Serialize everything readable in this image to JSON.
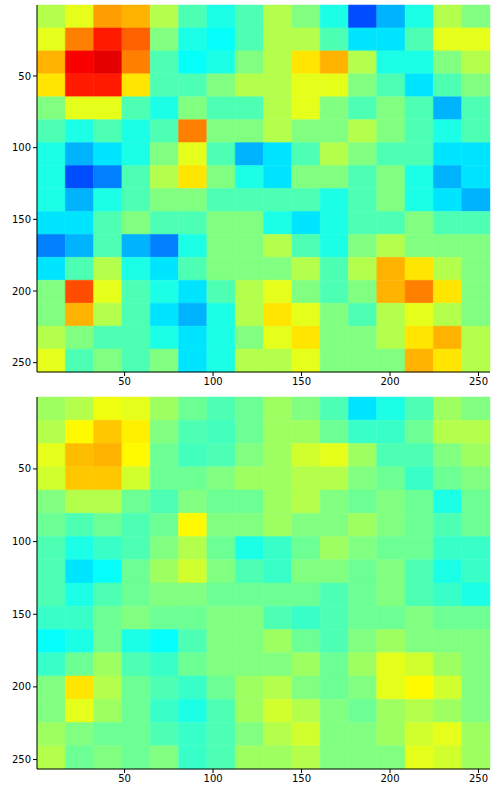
{
  "chart_data": [
    {
      "type": "heatmap",
      "xlim": [
        0.5,
        256.5
      ],
      "ylim": [
        0.5,
        256.5
      ],
      "xticks": [
        50,
        100,
        150,
        200,
        250
      ],
      "yticks": [
        50,
        100,
        150,
        200,
        250
      ],
      "x_edges": [
        0.5,
        16.5,
        32.5,
        48.5,
        64.5,
        80.5,
        96.5,
        112.5,
        128.5,
        144.5,
        160.5,
        176.5,
        192.5,
        208.5,
        224.5,
        240.5,
        256.5
      ],
      "y_edges": [
        0.5,
        16.5,
        32.5,
        48.5,
        64.5,
        80.5,
        96.5,
        112.5,
        128.5,
        144.5,
        160.5,
        176.5,
        192.5,
        208.5,
        224.5,
        240.5,
        256.5
      ],
      "clim": [
        0,
        1
      ],
      "cells": [
        [
          0.55,
          0.6,
          0.72,
          0.7,
          0.55,
          0.45,
          0.4,
          0.45,
          0.55,
          0.5,
          0.4,
          0.2,
          0.3,
          0.4,
          0.55,
          0.5
        ],
        [
          0.6,
          0.75,
          0.85,
          0.78,
          0.5,
          0.4,
          0.38,
          0.45,
          0.55,
          0.55,
          0.45,
          0.35,
          0.35,
          0.45,
          0.6,
          0.6
        ],
        [
          0.7,
          0.88,
          0.9,
          0.75,
          0.45,
          0.38,
          0.4,
          0.5,
          0.55,
          0.65,
          0.7,
          0.55,
          0.4,
          0.4,
          0.5,
          0.55
        ],
        [
          0.65,
          0.85,
          0.85,
          0.65,
          0.45,
          0.45,
          0.5,
          0.55,
          0.55,
          0.6,
          0.6,
          0.5,
          0.45,
          0.35,
          0.45,
          0.5
        ],
        [
          0.5,
          0.6,
          0.6,
          0.45,
          0.4,
          0.5,
          0.45,
          0.45,
          0.55,
          0.6,
          0.5,
          0.45,
          0.5,
          0.45,
          0.3,
          0.45
        ],
        [
          0.45,
          0.4,
          0.45,
          0.4,
          0.45,
          0.75,
          0.5,
          0.5,
          0.55,
          0.5,
          0.5,
          0.55,
          0.5,
          0.45,
          0.4,
          0.45
        ],
        [
          0.4,
          0.3,
          0.35,
          0.4,
          0.5,
          0.6,
          0.45,
          0.3,
          0.35,
          0.45,
          0.55,
          0.5,
          0.45,
          0.45,
          0.35,
          0.35
        ],
        [
          0.4,
          0.2,
          0.25,
          0.45,
          0.55,
          0.65,
          0.5,
          0.4,
          0.35,
          0.5,
          0.5,
          0.45,
          0.5,
          0.4,
          0.3,
          0.35
        ],
        [
          0.4,
          0.3,
          0.4,
          0.45,
          0.5,
          0.5,
          0.45,
          0.45,
          0.45,
          0.45,
          0.4,
          0.45,
          0.5,
          0.4,
          0.35,
          0.3
        ],
        [
          0.35,
          0.35,
          0.45,
          0.5,
          0.45,
          0.45,
          0.5,
          0.5,
          0.4,
          0.35,
          0.4,
          0.45,
          0.45,
          0.5,
          0.45,
          0.45
        ],
        [
          0.25,
          0.3,
          0.45,
          0.3,
          0.25,
          0.4,
          0.5,
          0.5,
          0.55,
          0.45,
          0.4,
          0.5,
          0.55,
          0.5,
          0.5,
          0.5
        ],
        [
          0.35,
          0.45,
          0.55,
          0.4,
          0.35,
          0.45,
          0.5,
          0.5,
          0.5,
          0.55,
          0.45,
          0.55,
          0.7,
          0.65,
          0.55,
          0.5
        ],
        [
          0.5,
          0.8,
          0.6,
          0.45,
          0.4,
          0.35,
          0.45,
          0.55,
          0.6,
          0.5,
          0.45,
          0.5,
          0.7,
          0.75,
          0.65,
          0.5
        ],
        [
          0.5,
          0.7,
          0.55,
          0.45,
          0.35,
          0.3,
          0.4,
          0.55,
          0.65,
          0.6,
          0.5,
          0.45,
          0.55,
          0.6,
          0.55,
          0.5
        ],
        [
          0.55,
          0.5,
          0.45,
          0.45,
          0.4,
          0.35,
          0.4,
          0.5,
          0.6,
          0.65,
          0.5,
          0.5,
          0.55,
          0.65,
          0.7,
          0.55
        ],
        [
          0.6,
          0.45,
          0.5,
          0.45,
          0.5,
          0.35,
          0.4,
          0.55,
          0.55,
          0.6,
          0.5,
          0.5,
          0.5,
          0.7,
          0.65,
          0.55
        ]
      ]
    },
    {
      "type": "heatmap",
      "xlim": [
        0.5,
        256.5
      ],
      "ylim": [
        0.5,
        256.5
      ],
      "xticks": [
        50,
        100,
        150,
        200,
        250
      ],
      "yticks": [
        50,
        100,
        150,
        200,
        250
      ],
      "x_edges": [
        0.5,
        16.5,
        32.5,
        48.5,
        64.5,
        80.5,
        96.5,
        112.5,
        128.5,
        144.5,
        160.5,
        176.5,
        192.5,
        208.5,
        224.5,
        240.5,
        256.5
      ],
      "y_edges": [
        0.5,
        16.5,
        32.5,
        48.5,
        64.5,
        80.5,
        96.5,
        112.5,
        128.5,
        144.5,
        160.5,
        176.5,
        192.5,
        208.5,
        224.5,
        240.5,
        256.5
      ],
      "clim": [
        0,
        1
      ],
      "cells": [
        [
          0.53,
          0.55,
          0.61,
          0.6,
          0.53,
          0.48,
          0.45,
          0.48,
          0.53,
          0.5,
          0.45,
          0.35,
          0.4,
          0.45,
          0.53,
          0.5
        ],
        [
          0.55,
          0.63,
          0.68,
          0.64,
          0.5,
          0.45,
          0.44,
          0.48,
          0.53,
          0.53,
          0.48,
          0.43,
          0.43,
          0.48,
          0.55,
          0.55
        ],
        [
          0.6,
          0.69,
          0.7,
          0.63,
          0.48,
          0.44,
          0.45,
          0.5,
          0.53,
          0.58,
          0.6,
          0.53,
          0.45,
          0.45,
          0.5,
          0.53
        ],
        [
          0.58,
          0.68,
          0.68,
          0.58,
          0.48,
          0.48,
          0.5,
          0.53,
          0.53,
          0.55,
          0.55,
          0.5,
          0.48,
          0.43,
          0.48,
          0.5
        ],
        [
          0.5,
          0.55,
          0.55,
          0.48,
          0.45,
          0.5,
          0.48,
          0.48,
          0.53,
          0.55,
          0.5,
          0.48,
          0.5,
          0.48,
          0.4,
          0.48
        ],
        [
          0.48,
          0.45,
          0.48,
          0.45,
          0.48,
          0.63,
          0.5,
          0.5,
          0.53,
          0.5,
          0.5,
          0.53,
          0.5,
          0.48,
          0.45,
          0.48
        ],
        [
          0.45,
          0.4,
          0.43,
          0.45,
          0.5,
          0.55,
          0.48,
          0.4,
          0.43,
          0.48,
          0.53,
          0.5,
          0.48,
          0.48,
          0.43,
          0.43
        ],
        [
          0.45,
          0.35,
          0.38,
          0.48,
          0.53,
          0.58,
          0.5,
          0.45,
          0.43,
          0.5,
          0.5,
          0.48,
          0.5,
          0.45,
          0.4,
          0.43
        ],
        [
          0.45,
          0.4,
          0.45,
          0.48,
          0.5,
          0.5,
          0.48,
          0.48,
          0.48,
          0.48,
          0.45,
          0.48,
          0.5,
          0.45,
          0.43,
          0.4
        ],
        [
          0.43,
          0.43,
          0.48,
          0.5,
          0.48,
          0.48,
          0.5,
          0.5,
          0.45,
          0.43,
          0.45,
          0.48,
          0.48,
          0.5,
          0.48,
          0.48
        ],
        [
          0.38,
          0.4,
          0.48,
          0.4,
          0.38,
          0.45,
          0.5,
          0.5,
          0.53,
          0.48,
          0.45,
          0.5,
          0.53,
          0.5,
          0.5,
          0.5
        ],
        [
          0.43,
          0.48,
          0.53,
          0.45,
          0.43,
          0.48,
          0.5,
          0.5,
          0.5,
          0.53,
          0.48,
          0.53,
          0.6,
          0.58,
          0.53,
          0.5
        ],
        [
          0.5,
          0.65,
          0.55,
          0.48,
          0.45,
          0.43,
          0.48,
          0.53,
          0.55,
          0.5,
          0.48,
          0.5,
          0.6,
          0.63,
          0.58,
          0.5
        ],
        [
          0.5,
          0.6,
          0.53,
          0.48,
          0.43,
          0.4,
          0.45,
          0.53,
          0.58,
          0.55,
          0.5,
          0.48,
          0.53,
          0.55,
          0.53,
          0.5
        ],
        [
          0.53,
          0.5,
          0.48,
          0.48,
          0.45,
          0.43,
          0.45,
          0.5,
          0.55,
          0.58,
          0.5,
          0.5,
          0.53,
          0.58,
          0.6,
          0.53
        ],
        [
          0.55,
          0.48,
          0.5,
          0.48,
          0.5,
          0.43,
          0.45,
          0.53,
          0.53,
          0.55,
          0.5,
          0.5,
          0.5,
          0.6,
          0.58,
          0.53
        ]
      ]
    }
  ]
}
